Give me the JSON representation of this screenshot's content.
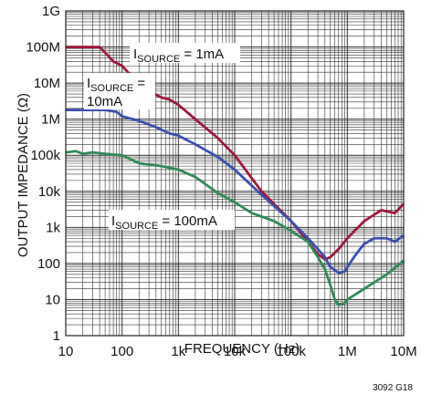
{
  "chart_data": {
    "type": "line",
    "xlabel": "FREQUENCY (Hz)",
    "ylabel": "OUTPUT IMPEDANCE (Ω)",
    "xscale": "log",
    "yscale": "log",
    "xlim": [
      10,
      10000000
    ],
    "ylim": [
      1,
      1000000000
    ],
    "grid": true,
    "x_tick_labels": [
      "10",
      "100",
      "1k",
      "10k",
      "100k",
      "1M",
      "10M"
    ],
    "y_tick_labels": [
      "1",
      "10",
      "100",
      "1k",
      "10k",
      "100k",
      "1M",
      "10M",
      "100M",
      "1G"
    ],
    "series": [
      {
        "name": "ISOURCE = 1mA",
        "color": "#a0173a",
        "points": [
          [
            10,
            100000000
          ],
          [
            20,
            100000000
          ],
          [
            40,
            100000000
          ],
          [
            50,
            70000000
          ],
          [
            70,
            40000000
          ],
          [
            100,
            30000000
          ],
          [
            150,
            15000000
          ],
          [
            200,
            10000000
          ],
          [
            300,
            6000000
          ],
          [
            500,
            4000000
          ],
          [
            700,
            3500000
          ],
          [
            1000,
            2500000
          ],
          [
            2000,
            1000000
          ],
          [
            5000,
            300000
          ],
          [
            10000,
            100000
          ],
          [
            30000,
            10000
          ],
          [
            100000,
            1500
          ],
          [
            200000,
            400
          ],
          [
            300000,
            180
          ],
          [
            400000,
            130
          ],
          [
            500000,
            150
          ],
          [
            700000,
            250
          ],
          [
            1000000,
            500
          ],
          [
            2000000,
            1500
          ],
          [
            4000000,
            3000
          ],
          [
            7000000,
            2500
          ],
          [
            10000000,
            4500
          ]
        ]
      },
      {
        "name": "ISOURCE = 10mA",
        "color": "#3a4fb0",
        "points": [
          [
            10,
            1800000
          ],
          [
            20,
            1800000
          ],
          [
            50,
            1800000
          ],
          [
            80,
            1600000
          ],
          [
            100,
            1200000
          ],
          [
            200,
            900000
          ],
          [
            400,
            600000
          ],
          [
            700,
            400000
          ],
          [
            1000,
            350000
          ],
          [
            2000,
            200000
          ],
          [
            5000,
            90000
          ],
          [
            10000,
            40000
          ],
          [
            30000,
            8000
          ],
          [
            100000,
            1500
          ],
          [
            200000,
            500
          ],
          [
            300000,
            250
          ],
          [
            400000,
            150
          ],
          [
            500000,
            80
          ],
          [
            700000,
            55
          ],
          [
            900000,
            60
          ],
          [
            1000000,
            80
          ],
          [
            1500000,
            200
          ],
          [
            2000000,
            350
          ],
          [
            3000000,
            500
          ],
          [
            5000000,
            500
          ],
          [
            7000000,
            400
          ],
          [
            10000000,
            600
          ]
        ]
      },
      {
        "name": "ISOURCE = 100mA",
        "color": "#2e8b57",
        "points": [
          [
            10,
            120000
          ],
          [
            15,
            130000
          ],
          [
            20,
            110000
          ],
          [
            30,
            120000
          ],
          [
            50,
            110000
          ],
          [
            100,
            100000
          ],
          [
            200,
            60000
          ],
          [
            500,
            50000
          ],
          [
            1000,
            40000
          ],
          [
            2000,
            25000
          ],
          [
            5000,
            9000
          ],
          [
            10000,
            5000
          ],
          [
            20000,
            2500
          ],
          [
            50000,
            1500
          ],
          [
            100000,
            800
          ],
          [
            200000,
            400
          ],
          [
            300000,
            150
          ],
          [
            400000,
            70
          ],
          [
            500000,
            25
          ],
          [
            600000,
            10
          ],
          [
            700000,
            7
          ],
          [
            900000,
            8
          ],
          [
            1000000,
            10
          ],
          [
            2000000,
            20
          ],
          [
            5000000,
            50
          ],
          [
            10000000,
            120
          ]
        ]
      }
    ]
  },
  "labels": {
    "curve_1mA": {
      "main": "I",
      "sub": "SOURCE",
      "rest": " = 1mA"
    },
    "curve_10mA": {
      "main": "I",
      "sub": "SOURCE",
      "rest": " =",
      "line2": "10mA"
    },
    "curve_100mA": {
      "main": "I",
      "sub": "SOURCE",
      "rest": " = 100mA"
    }
  },
  "figure_code": "3092 G18"
}
